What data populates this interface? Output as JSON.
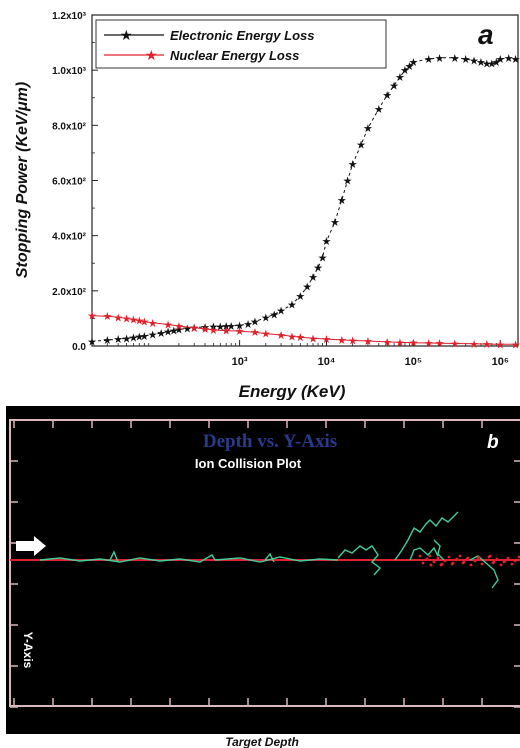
{
  "chart_data": [
    {
      "type": "scatter",
      "panel_label": "a",
      "xlabel": "Energy (KeV)",
      "ylabel": "Stopping Power (KeV/μm)",
      "x_scale": "log",
      "xlim": [
        20,
        1600000
      ],
      "ylim": [
        0,
        1200
      ],
      "x_ticks": [
        {
          "value": 1000,
          "label": "10³"
        },
        {
          "value": 10000,
          "label": "10⁴"
        },
        {
          "value": 100000,
          "label": "10⁵"
        },
        {
          "value": 1000000,
          "label": "10⁶"
        }
      ],
      "y_ticks": [
        {
          "value": 0,
          "label": "0.0"
        },
        {
          "value": 200,
          "label": "2.0x10²"
        },
        {
          "value": 400,
          "label": "4.0x10²"
        },
        {
          "value": 600,
          "label": "6.0x10²"
        },
        {
          "value": 800,
          "label": "8.0x10²"
        },
        {
          "value": 1000,
          "label": "1.0x10³"
        },
        {
          "value": 1200,
          "label": "1.2x10³"
        }
      ],
      "legend_position": "top-left",
      "series": [
        {
          "name": "Electronic Energy Loss",
          "color": "#111111",
          "marker": "star",
          "line": "dashed",
          "x": [
            20,
            30,
            40,
            50,
            60,
            70,
            80,
            100,
            125,
            150,
            175,
            200,
            250,
            300,
            400,
            500,
            600,
            700,
            800,
            1000,
            1250,
            1500,
            2000,
            2500,
            3000,
            4000,
            5000,
            6000,
            7000,
            8000,
            9000,
            10000,
            12500,
            15000,
            17500,
            20000,
            25000,
            30000,
            40000,
            50000,
            60000,
            70000,
            80000,
            90000,
            100000,
            150000,
            200000,
            300000,
            400000,
            500000,
            600000,
            700000,
            800000,
            900000,
            1000000,
            1250000,
            1500000
          ],
          "values": [
            17,
            21,
            25,
            28,
            31,
            34,
            37,
            42,
            47,
            52,
            56,
            60,
            64,
            67,
            69,
            70,
            71,
            72,
            73,
            75,
            80,
            88,
            103,
            115,
            128,
            150,
            182,
            215,
            250,
            285,
            320,
            380,
            450,
            530,
            600,
            660,
            730,
            790,
            860,
            910,
            945,
            975,
            1000,
            1015,
            1030,
            1040,
            1045,
            1045,
            1040,
            1035,
            1030,
            1025,
            1025,
            1030,
            1040,
            1045,
            1040
          ]
        },
        {
          "name": "Nuclear Energy Loss",
          "color": "#e0202a",
          "marker": "star",
          "line": "solid",
          "x": [
            20,
            30,
            40,
            50,
            60,
            70,
            80,
            100,
            150,
            200,
            300,
            400,
            500,
            700,
            1000,
            1500,
            2000,
            3000,
            4000,
            5000,
            7000,
            10000,
            15000,
            20000,
            30000,
            50000,
            70000,
            100000,
            150000,
            200000,
            300000,
            500000,
            700000,
            1000000,
            1500000
          ],
          "values": [
            110,
            108,
            104,
            100,
            96,
            92,
            88,
            84,
            78,
            72,
            66,
            62,
            58,
            56,
            54,
            50,
            45,
            40,
            35,
            32,
            28,
            25,
            22,
            20,
            18,
            15,
            13,
            12,
            11,
            10,
            9,
            8,
            7,
            6,
            6
          ]
        }
      ]
    },
    {
      "type": "trajectory-plot",
      "panel_label": "b",
      "title": "Depth vs. Y-Axis",
      "subtitle": "Ion Collision Plot",
      "xlabel": "Target Depth",
      "ylabel": "Y-Axis",
      "colors": {
        "background": "#000000",
        "frame": "#d9b9bb",
        "baseline": "#e0202a",
        "cascade": "#44cc99",
        "title": "#2a3a8a",
        "arrow": "#ffffff"
      },
      "incident_arrow": "right-arrow-icon"
    }
  ]
}
